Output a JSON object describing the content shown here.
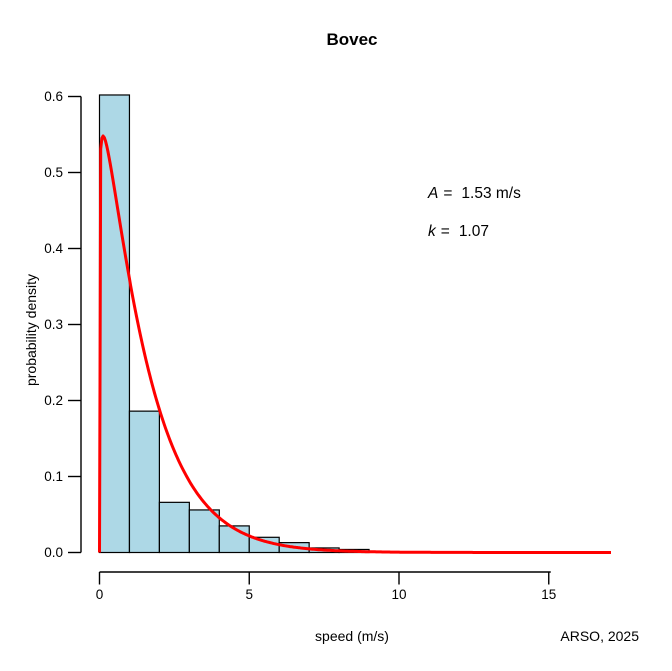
{
  "title": "Bovec",
  "xlabel": "speed (m/s)",
  "ylabel": "probability density",
  "credit": "ARSO, 2025",
  "annotation": {
    "lines": [
      {
        "symbol": "A",
        "eq": "=",
        "value": "1.53 m/s"
      },
      {
        "symbol": "k",
        "eq": "=",
        "value": "1.07"
      }
    ]
  },
  "chart_data": {
    "type": "bar",
    "subtype": "histogram-with-fit-line",
    "title": "Bovec",
    "xlabel": "speed (m/s)",
    "ylabel": "probability density",
    "xlim": [
      0,
      17.1
    ],
    "ylim": [
      0,
      0.6
    ],
    "grid": false,
    "histogram": {
      "bin_width": 1,
      "bin_edges": [
        0,
        1,
        2,
        3,
        4,
        5,
        6,
        7,
        8,
        9
      ],
      "densities": [
        0.602,
        0.186,
        0.066,
        0.056,
        0.035,
        0.02,
        0.013,
        0.006,
        0.004
      ],
      "fill": "#ADD8E6",
      "stroke": "#000000"
    },
    "fit_curve": {
      "model": "weibull-pdf",
      "A": 1.53,
      "k": 1.07,
      "x_min": 0,
      "x_max": 17.1,
      "peak_density": 0.545,
      "color": "#FF0000",
      "width": 3
    },
    "x_axis": {
      "ticks": [
        0,
        5,
        10,
        15
      ]
    },
    "y_axis": {
      "ticks": [
        "0.0",
        "0.1",
        "0.2",
        "0.3",
        "0.4",
        "0.5",
        "0.6"
      ]
    },
    "axis_color": "#000000"
  }
}
